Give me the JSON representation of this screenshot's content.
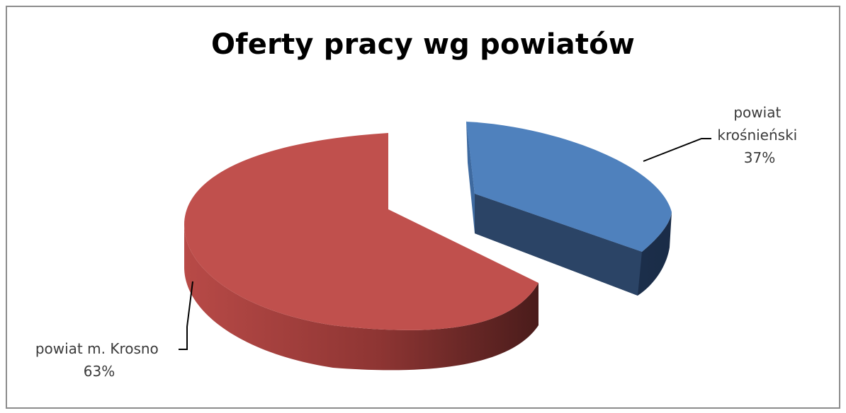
{
  "chart_data": {
    "type": "pie",
    "title": "Oferty pracy wg powiatów",
    "style": "3d-exploded",
    "slices": [
      {
        "label": "powiat krośnieński",
        "label_lines": [
          "powiat",
          "krośnieński",
          "37%"
        ],
        "value": 37,
        "percent_label": "37%",
        "color": "#4f81bd"
      },
      {
        "label": "powiat m. Krosno",
        "label_lines": [
          "powiat m. Krosno",
          "63%"
        ],
        "value": 63,
        "percent_label": "63%",
        "color": "#c0504d"
      }
    ]
  }
}
